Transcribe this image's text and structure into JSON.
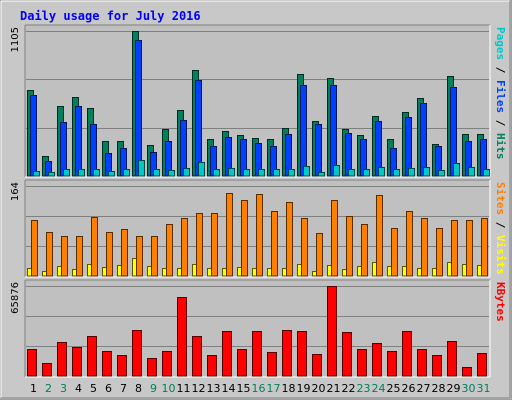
{
  "chart_data": {
    "type": "bar",
    "title": "Daily usage for July 2016",
    "categories": [
      "1",
      "2",
      "3",
      "4",
      "5",
      "6",
      "7",
      "8",
      "9",
      "10",
      "11",
      "12",
      "13",
      "14",
      "15",
      "16",
      "17",
      "18",
      "19",
      "20",
      "21",
      "22",
      "23",
      "24",
      "25",
      "26",
      "27",
      "28",
      "29",
      "30",
      "31"
    ],
    "weekend_days": [
      "2",
      "3",
      "9",
      "10",
      "16",
      "17",
      "23",
      "24",
      "30",
      "31"
    ],
    "panels": [
      {
        "id": "top",
        "ymax_label": "1105",
        "ymax": 1105,
        "right_label": [
          {
            "text": "Pages",
            "color": "#00c8c8"
          },
          {
            "text": " / ",
            "color": "#000000"
          },
          {
            "text": "Files",
            "color": "#0040ff"
          },
          {
            "text": " / ",
            "color": "#000000"
          },
          {
            "text": "Hits",
            "color": "#00805c"
          }
        ],
        "series": [
          {
            "name": "Hits",
            "color": "#00805c",
            "values": [
              655,
              150,
              530,
              600,
              520,
              270,
              270,
              1105,
              240,
              360,
              500,
              810,
              280,
              340,
              310,
              290,
              280,
              365,
              780,
              420,
              750,
              355,
              315,
              460,
              280,
              485,
              595,
              245,
              760,
              320,
              320
            ]
          },
          {
            "name": "Files",
            "color": "#0040ff",
            "values": [
              620,
              115,
              410,
              530,
              400,
              175,
              210,
              1040,
              180,
              270,
              430,
              735,
              230,
              300,
              280,
              255,
              230,
              320,
              695,
              395,
              695,
              325,
              285,
              420,
              210,
              450,
              560,
              225,
              680,
              270,
              285
            ]
          },
          {
            "name": "Pages",
            "color": "#00c8c8",
            "values": [
              35,
              30,
              50,
              55,
              55,
              40,
              50,
              125,
              55,
              45,
              60,
              105,
              55,
              60,
              55,
              50,
              55,
              55,
              80,
              30,
              85,
              55,
              55,
              70,
              50,
              60,
              70,
              45,
              100,
              65,
              55
            ]
          }
        ]
      },
      {
        "id": "mid",
        "ymax_label": "164",
        "ymax": 164,
        "right_label": [
          {
            "text": "Sites",
            "color": "#ff8000"
          },
          {
            "text": " / ",
            "color": "#000000"
          },
          {
            "text": "Visits",
            "color": "#ffff00"
          }
        ],
        "series": [
          {
            "name": "Visits",
            "color": "#ffff00",
            "values": [
              14,
              9,
              18,
              12,
              22,
              17,
              20,
              32,
              19,
              15,
              14,
              21,
              14,
              14,
              16,
              14,
              15,
              14,
              22,
              10,
              20,
              12,
              19,
              26,
              18,
              18,
              14,
              14,
              26,
              21,
              20
            ]
          },
          {
            "name": "Sites",
            "color": "#ff8000",
            "values": [
              102,
              80,
              72,
              72,
              108,
              80,
              85,
              72,
              72,
              95,
              105,
              115,
              115,
              152,
              138,
              150,
              118,
              135,
              105,
              78,
              138,
              110,
              95,
              148,
              88,
              118,
              105,
              88,
              102,
              102,
              105
            ]
          }
        ]
      },
      {
        "id": "bot",
        "ymax_label": "65876",
        "ymax": 65876,
        "right_label": [
          {
            "text": "KBytes",
            "color": "#ff0000"
          }
        ],
        "series": [
          {
            "name": "KBytes",
            "color": "#ff0000",
            "values": [
              20000,
              9500,
              25000,
              21500,
              29000,
              18000,
              15500,
              34000,
              13500,
              18000,
              58000,
              29000,
              15500,
              33000,
              20000,
              33000,
              17500,
              34000,
              33000,
              16000,
              65876,
              32000,
              20000,
              24000,
              18500,
              33000,
              19500,
              15500,
              25500,
              6500,
              17000
            ]
          }
        ]
      }
    ]
  }
}
